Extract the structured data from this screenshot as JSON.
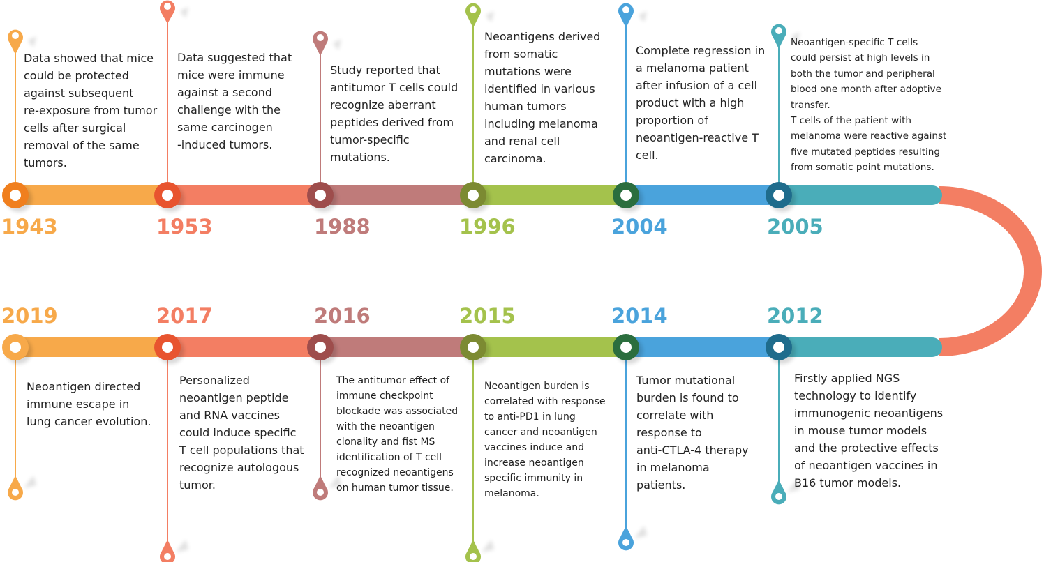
{
  "colors": {
    "c1943": "#F7A94A",
    "c1953": "#F37E63",
    "c1988": "#BF7B7A",
    "c1996": "#A4C24C",
    "c2004": "#4AA3DC",
    "c2005": "#4AADB9",
    "curve": "#F37E63",
    "text": "#222222"
  },
  "top_row": [
    {
      "year": "1943",
      "color": "#F7A94A",
      "text": "Data showed that mice\ncould be protected\nagainst subsequent\nre-exposure from tumor\ncells after surgical\nremoval of the same\ntumors."
    },
    {
      "year": "1953",
      "color": "#F37E63",
      "text": "Data suggested that\nmice were immune\nagainst a second\nchallenge with the\nsame carcinogen\n-induced tumors."
    },
    {
      "year": "1988",
      "color": "#BF7B7A",
      "text": "Study reported that\nantitumor T cells could\nrecognize aberrant\npeptides derived from\ntumor-specific\nmutations."
    },
    {
      "year": "1996",
      "color": "#A4C24C",
      "text": "Neoantigens derived\nfrom somatic\nmutations were\nidentified in various\nhuman tumors\nincluding melanoma\nand renal cell\ncarcinoma."
    },
    {
      "year": "2004",
      "color": "#4AA3DC",
      "text": "Complete regression in\na melanoma patient\nafter infusion of a cell\nproduct with a high\nproportion of\nneoantigen-reactive T\ncell."
    },
    {
      "year": "2005",
      "color": "#4AADB9",
      "text": "Neoantigen-specific T cells\ncould persist at high levels in\nboth the tumor and peripheral\nblood one month after adoptive\ntransfer.\nT cells of the patient with\nmelanoma were reactive against\nfive mutated peptides resulting\nfrom somatic point mutations."
    }
  ],
  "bottom_row": [
    {
      "year": "2019",
      "color": "#F7A94A",
      "text": "Neoantigen directed\nimmune escape in\nlung cancer evolution."
    },
    {
      "year": "2017",
      "color": "#F37E63",
      "text": "Personalized\nneoantigen peptide\nand RNA vaccines\ncould induce specific\nT cell populations that\nrecognize autologous\ntumor."
    },
    {
      "year": "2016",
      "color": "#BF7B7A",
      "text": "The antitumor effect of\nimmune checkpoint\nblockade was associated\nwith the neoantigen\nclonality and fist MS\nidentification of T cell\nrecognized neoantigens\non human tumor tissue."
    },
    {
      "year": "2015",
      "color": "#A4C24C",
      "text": "Neoantigen burden is\ncorrelated with response\nto anti-PD1 in lung\ncancer and neoantigen\nvaccines induce and\nincrease neoantigen\nspecific immunity in\nmelanoma."
    },
    {
      "year": "2014",
      "color": "#4AA3DC",
      "text": "Tumor mutational\nburden is found to\ncorrelate with\nresponse to\nanti-CTLA-4 therapy\nin melanoma\npatients."
    },
    {
      "year": "2012",
      "color": "#4AADB9",
      "text": "Firstly applied NGS\ntechnology to identify\nimmunogenic neoantigens\nin mouse tumor models\nand the protective effects\nof neoantigen vaccines in\nB16 tumor models."
    }
  ]
}
